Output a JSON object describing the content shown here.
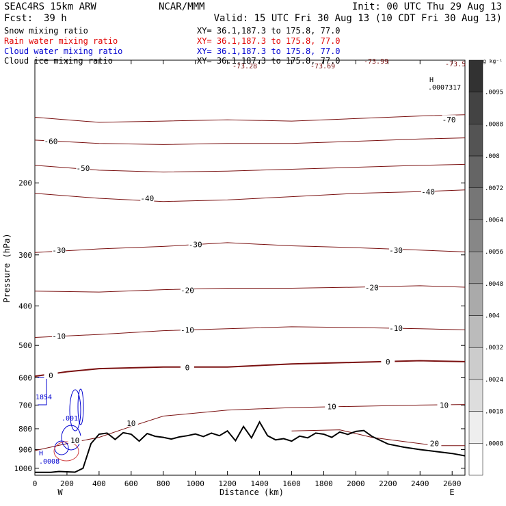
{
  "header": {
    "model": "SEAC4RS 15km ARW",
    "center": "NCAR/MMM",
    "init": "Init: 00 UTC Thu 29 Aug 13",
    "fcst_label": "Fcst:",
    "fcst_value": "39 h",
    "valid": "Valid: 15 UTC Fri 30 Aug 13 (10 CDT Fri 30 Aug 13)"
  },
  "fields": [
    {
      "name": "Snow mixing ratio",
      "xy": "XY=  36.1,187.3 to 175.8, 77.0",
      "color": "#000000"
    },
    {
      "name": "Rain water mixing ratio",
      "xy": "XY=  36.1,187.3 to 175.8, 77.0",
      "color": "#e00000"
    },
    {
      "name": "Cloud water mixing ratio",
      "xy": "XY=  36.1,187.3 to 175.8, 77.0",
      "color": "#0000d0"
    },
    {
      "name": "Cloud ice mixing ratio",
      "xy": "XY=  36.1,187.3 to 175.8, 77.0",
      "color": "#000000"
    }
  ],
  "colorbar": {
    "unit": "g kg⁻¹",
    "labels": [
      ".0095",
      ".0088",
      ".008",
      ".0072",
      ".0064",
      ".0056",
      ".0048",
      ".004",
      ".0032",
      ".0024",
      ".0018",
      ".0008"
    ]
  },
  "annotations": {
    "h_marker": "H",
    "h_value": ".0007317",
    "top_values": [
      "-73.28",
      "-73.69",
      "-73.99",
      "-73.5"
    ],
    "left_value": "1854",
    "left_small": ".001",
    "bottom_h": "H",
    "bottom_value": ".0008",
    "direction_left": "W",
    "direction_right": "E"
  },
  "chart_data": {
    "type": "line",
    "xlabel": "Distance (km)",
    "ylabel": "Pressure (hPa)",
    "xlim": [
      0,
      2680
    ],
    "ylim": [
      1040,
      100
    ],
    "y_scale": "pressure (log-like, descending)",
    "x_ticks": [
      0,
      200,
      400,
      600,
      800,
      1000,
      1200,
      1400,
      1600,
      1800,
      2000,
      2200,
      2400,
      2600
    ],
    "y_ticks": [
      200,
      300,
      400,
      500,
      600,
      700,
      800,
      900,
      1000
    ],
    "isotherm_color": "#7a1010",
    "terrain_color": "#000000",
    "isotherms": [
      {
        "temp_c": -70,
        "x": [
          0,
          400,
          800,
          1200,
          1600,
          2000,
          2400,
          2680
        ],
        "p": [
          138,
          142,
          141,
          140,
          141,
          139,
          137,
          136
        ]
      },
      {
        "temp_c": -60,
        "x": [
          0,
          400,
          800,
          1200,
          1600,
          2000,
          2400,
          2680
        ],
        "p": [
          157,
          160,
          161,
          160,
          160,
          158,
          156,
          155
        ]
      },
      {
        "temp_c": -50,
        "x": [
          0,
          400,
          800,
          1200,
          1600,
          2000,
          2400,
          2680
        ],
        "p": [
          181,
          186,
          188,
          187,
          185,
          183,
          181,
          180
        ]
      },
      {
        "temp_c": -40,
        "x": [
          0,
          400,
          800,
          1200,
          1600,
          2000,
          2400,
          2680
        ],
        "p": [
          212,
          218,
          222,
          220,
          216,
          212,
          210,
          208
        ]
      },
      {
        "temp_c": -30,
        "x": [
          0,
          400,
          800,
          1200,
          1600,
          2000,
          2400,
          2680
        ],
        "p": [
          296,
          290,
          286,
          280,
          285,
          288,
          292,
          295
        ]
      },
      {
        "temp_c": -20,
        "x": [
          0,
          400,
          800,
          1200,
          1600,
          2000,
          2400,
          2680
        ],
        "p": [
          368,
          370,
          365,
          362,
          362,
          360,
          357,
          360
        ]
      },
      {
        "temp_c": -10,
        "x": [
          0,
          400,
          800,
          1200,
          1600,
          2000,
          2400,
          2680
        ],
        "p": [
          478,
          470,
          460,
          455,
          450,
          452,
          455,
          458
        ]
      },
      {
        "temp_c": 0,
        "x": [
          0,
          200,
          400,
          800,
          1200,
          1600,
          2000,
          2400,
          2680
        ],
        "p": [
          595,
          580,
          570,
          565,
          565,
          555,
          550,
          545,
          548
        ]
      },
      {
        "temp_c": 10,
        "x": [
          0,
          200,
          400,
          600,
          800,
          1200,
          1600,
          2000,
          2400,
          2680
        ],
        "p": [
          905,
          870,
          840,
          790,
          745,
          720,
          710,
          705,
          700,
          698
        ]
      },
      {
        "temp_c": 20,
        "x": [
          1600,
          1900,
          2100,
          2300,
          2500,
          2680
        ],
        "p": [
          810,
          805,
          840,
          860,
          880,
          880
        ]
      }
    ],
    "contour_labels": [
      {
        "text": "-70",
        "x": 2580,
        "p": 140
      },
      {
        "text": "-60",
        "x": 100,
        "p": 158
      },
      {
        "text": "-50",
        "x": 300,
        "p": 184
      },
      {
        "text": "-40",
        "x": 700,
        "p": 218
      },
      {
        "text": "-40",
        "x": 2450,
        "p": 210
      },
      {
        "text": "-30",
        "x": 150,
        "p": 292
      },
      {
        "text": "-30",
        "x": 1000,
        "p": 283
      },
      {
        "text": "-30",
        "x": 2250,
        "p": 292
      },
      {
        "text": "-20",
        "x": 950,
        "p": 366
      },
      {
        "text": "-20",
        "x": 2100,
        "p": 361
      },
      {
        "text": "-10",
        "x": 150,
        "p": 474
      },
      {
        "text": "-10",
        "x": 950,
        "p": 458
      },
      {
        "text": "-10",
        "x": 2250,
        "p": 454
      },
      {
        "text": "0",
        "x": 100,
        "p": 592
      },
      {
        "text": "0",
        "x": 950,
        "p": 566
      },
      {
        "text": "0",
        "x": 2200,
        "p": 548
      },
      {
        "text": "10",
        "x": 250,
        "p": 855
      },
      {
        "text": "10",
        "x": 600,
        "p": 775
      },
      {
        "text": "10",
        "x": 1850,
        "p": 706
      },
      {
        "text": "10",
        "x": 2550,
        "p": 700
      },
      {
        "text": "20",
        "x": 2490,
        "p": 870
      }
    ],
    "terrain": {
      "x": [
        0,
        100,
        150,
        200,
        250,
        300,
        350,
        400,
        450,
        500,
        550,
        600,
        650,
        700,
        750,
        800,
        850,
        900,
        950,
        1000,
        1050,
        1100,
        1150,
        1200,
        1250,
        1300,
        1350,
        1400,
        1450,
        1500,
        1550,
        1600,
        1650,
        1700,
        1750,
        1800,
        1850,
        1900,
        1950,
        2000,
        2050,
        2100,
        2200,
        2300,
        2400,
        2500,
        2600,
        2680
      ],
      "p": [
        1023,
        1023,
        1018,
        1020,
        1022,
        1000,
        870,
        825,
        820,
        850,
        818,
        825,
        858,
        822,
        835,
        840,
        848,
        838,
        832,
        824,
        836,
        820,
        832,
        810,
        856,
        790,
        842,
        770,
        832,
        852,
        846,
        858,
        834,
        842,
        820,
        825,
        840,
        815,
        826,
        812,
        808,
        835,
        872,
        888,
        900,
        910,
        920,
        932
      ]
    }
  }
}
